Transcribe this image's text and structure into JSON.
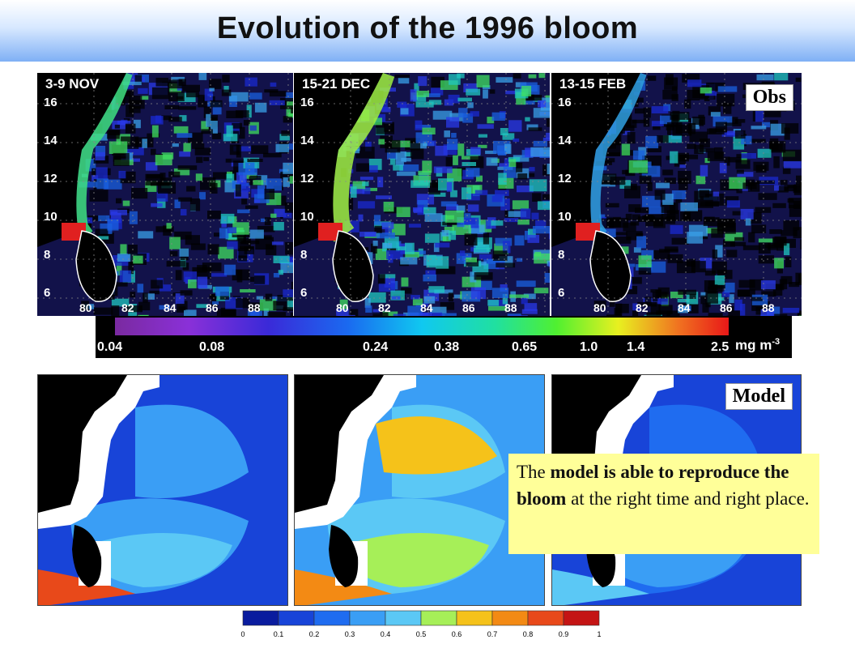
{
  "title": "Evolution of the 1996 bloom",
  "obs_label": "Obs",
  "model_label": "Model",
  "obs_panels": [
    {
      "date": "3-9 NOV"
    },
    {
      "date": "15-21 DEC"
    },
    {
      "date": "13-15 FEB"
    }
  ],
  "lat_ticks": [
    "16",
    "14",
    "12",
    "10",
    "8",
    "6"
  ],
  "lon_ticks": [
    "80",
    "82",
    "84",
    "86",
    "88"
  ],
  "obs_colorbar": {
    "ticks": [
      "0.04",
      "0.08",
      "0.24",
      "0.38",
      "0.65",
      "1.0",
      "1.4",
      "2.5"
    ],
    "unit": "mg m",
    "unit_exp": "-3"
  },
  "model_colorbar": {
    "ticks": [
      "0",
      "0.1",
      "0.2",
      "0.3",
      "0.4",
      "0.5",
      "0.6",
      "0.7",
      "0.8",
      "0.9",
      "1"
    ],
    "colors": [
      "#0a1c9e",
      "#1844d8",
      "#1f6cf0",
      "#3a9ef5",
      "#5bc8f5",
      "#a6ef58",
      "#f5c21a",
      "#f38a14",
      "#e8491a",
      "#c41414"
    ]
  },
  "callout": {
    "t1": "The ",
    "b1": "model is able to reproduce the bloom",
    "t2": " at the right time and right place."
  }
}
